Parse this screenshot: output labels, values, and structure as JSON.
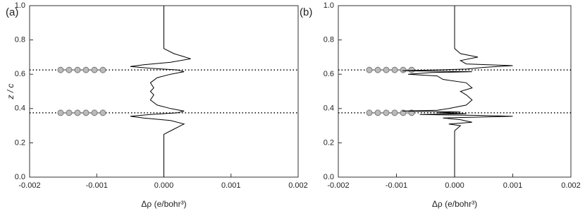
{
  "chart_data": [
    {
      "type": "line",
      "panel": "(a)",
      "ylabel": "z / c",
      "xlabel": "Δρ (e/bohr³)",
      "xlim": [
        -0.002,
        0.002
      ],
      "ylim": [
        0,
        1
      ],
      "xticks": [
        -0.002,
        -0.001,
        {
          "value": 0,
          "label": "0.000"
        },
        0.001,
        0.002
      ],
      "yticks": [
        {
          "value": 0,
          "label": "0.0"
        },
        0.2,
        0.4,
        0.6,
        0.8,
        {
          "value": 1,
          "label": "1.0"
        }
      ],
      "color": "#000000",
      "layers": [
        0.375,
        0.625
      ],
      "z": [
        0,
        0.25,
        0.28,
        0.31,
        0.33,
        0.345,
        0.355,
        0.365,
        0.375,
        0.385,
        0.4,
        0.42,
        0.45,
        0.48,
        0.5,
        0.52,
        0.55,
        0.58,
        0.6,
        0.615,
        0.625,
        0.635,
        0.645,
        0.655,
        0.67,
        0.69,
        0.72,
        0.75,
        1.0
      ],
      "values": [
        0,
        0,
        0.00015,
        0.0003,
        0.0001,
        -0.0003,
        -0.0005,
        -0.0002,
        0.0002,
        0.0003,
        0.0001,
        -0.0001,
        -0.0002,
        -0.00015,
        -0.0002,
        -0.00015,
        -0.0002,
        -0.0001,
        0.0001,
        0.0003,
        0.0002,
        -0.0002,
        -0.0005,
        -0.0003,
        0.0001,
        0.0004,
        0.00015,
        0,
        0
      ]
    },
    {
      "type": "line",
      "panel": "(b)",
      "xlabel": "Δρ (e/bohr³)",
      "xlim": [
        -0.002,
        0.002
      ],
      "ylim": [
        0,
        1
      ],
      "xticks": [
        -0.002,
        -0.001,
        {
          "value": 0,
          "label": "0.000"
        },
        0.001,
        0.002
      ],
      "yticks": [
        {
          "value": 0,
          "label": "0.0"
        },
        0.2,
        0.4,
        0.6,
        0.8,
        {
          "value": 1,
          "label": "1.0"
        }
      ],
      "color": "#000000",
      "layers": [
        0.375,
        0.625
      ],
      "z": [
        0,
        0.27,
        0.3,
        0.31,
        0.32,
        0.335,
        0.345,
        0.355,
        0.36,
        0.365,
        0.37,
        0.375,
        0.38,
        0.385,
        0.39,
        0.4,
        0.42,
        0.45,
        0.48,
        0.5,
        0.52,
        0.55,
        0.57,
        0.59,
        0.6,
        0.61,
        0.615,
        0.62,
        0.63,
        0.64,
        0.65,
        0.66,
        0.68,
        0.7,
        0.72,
        0.75,
        1.0
      ],
      "values": [
        0,
        0,
        0.0001,
        -0.0001,
        0.0003,
        0.0001,
        -0.0002,
        0.001,
        0.0004,
        -0.0006,
        0.0002,
        -0.0003,
        0.0001,
        -0.0009,
        -0.0003,
        -0.0001,
        0.0002,
        0.0003,
        0.0002,
        0.0001,
        0.0003,
        0.0002,
        -0.0002,
        -0.0003,
        -0.0008,
        -0.0004,
        0.0003,
        -0.0009,
        0.0002,
        0.0005,
        0.001,
        0.0002,
        0.0001,
        0.0004,
        0.0001,
        0,
        0
      ]
    }
  ]
}
